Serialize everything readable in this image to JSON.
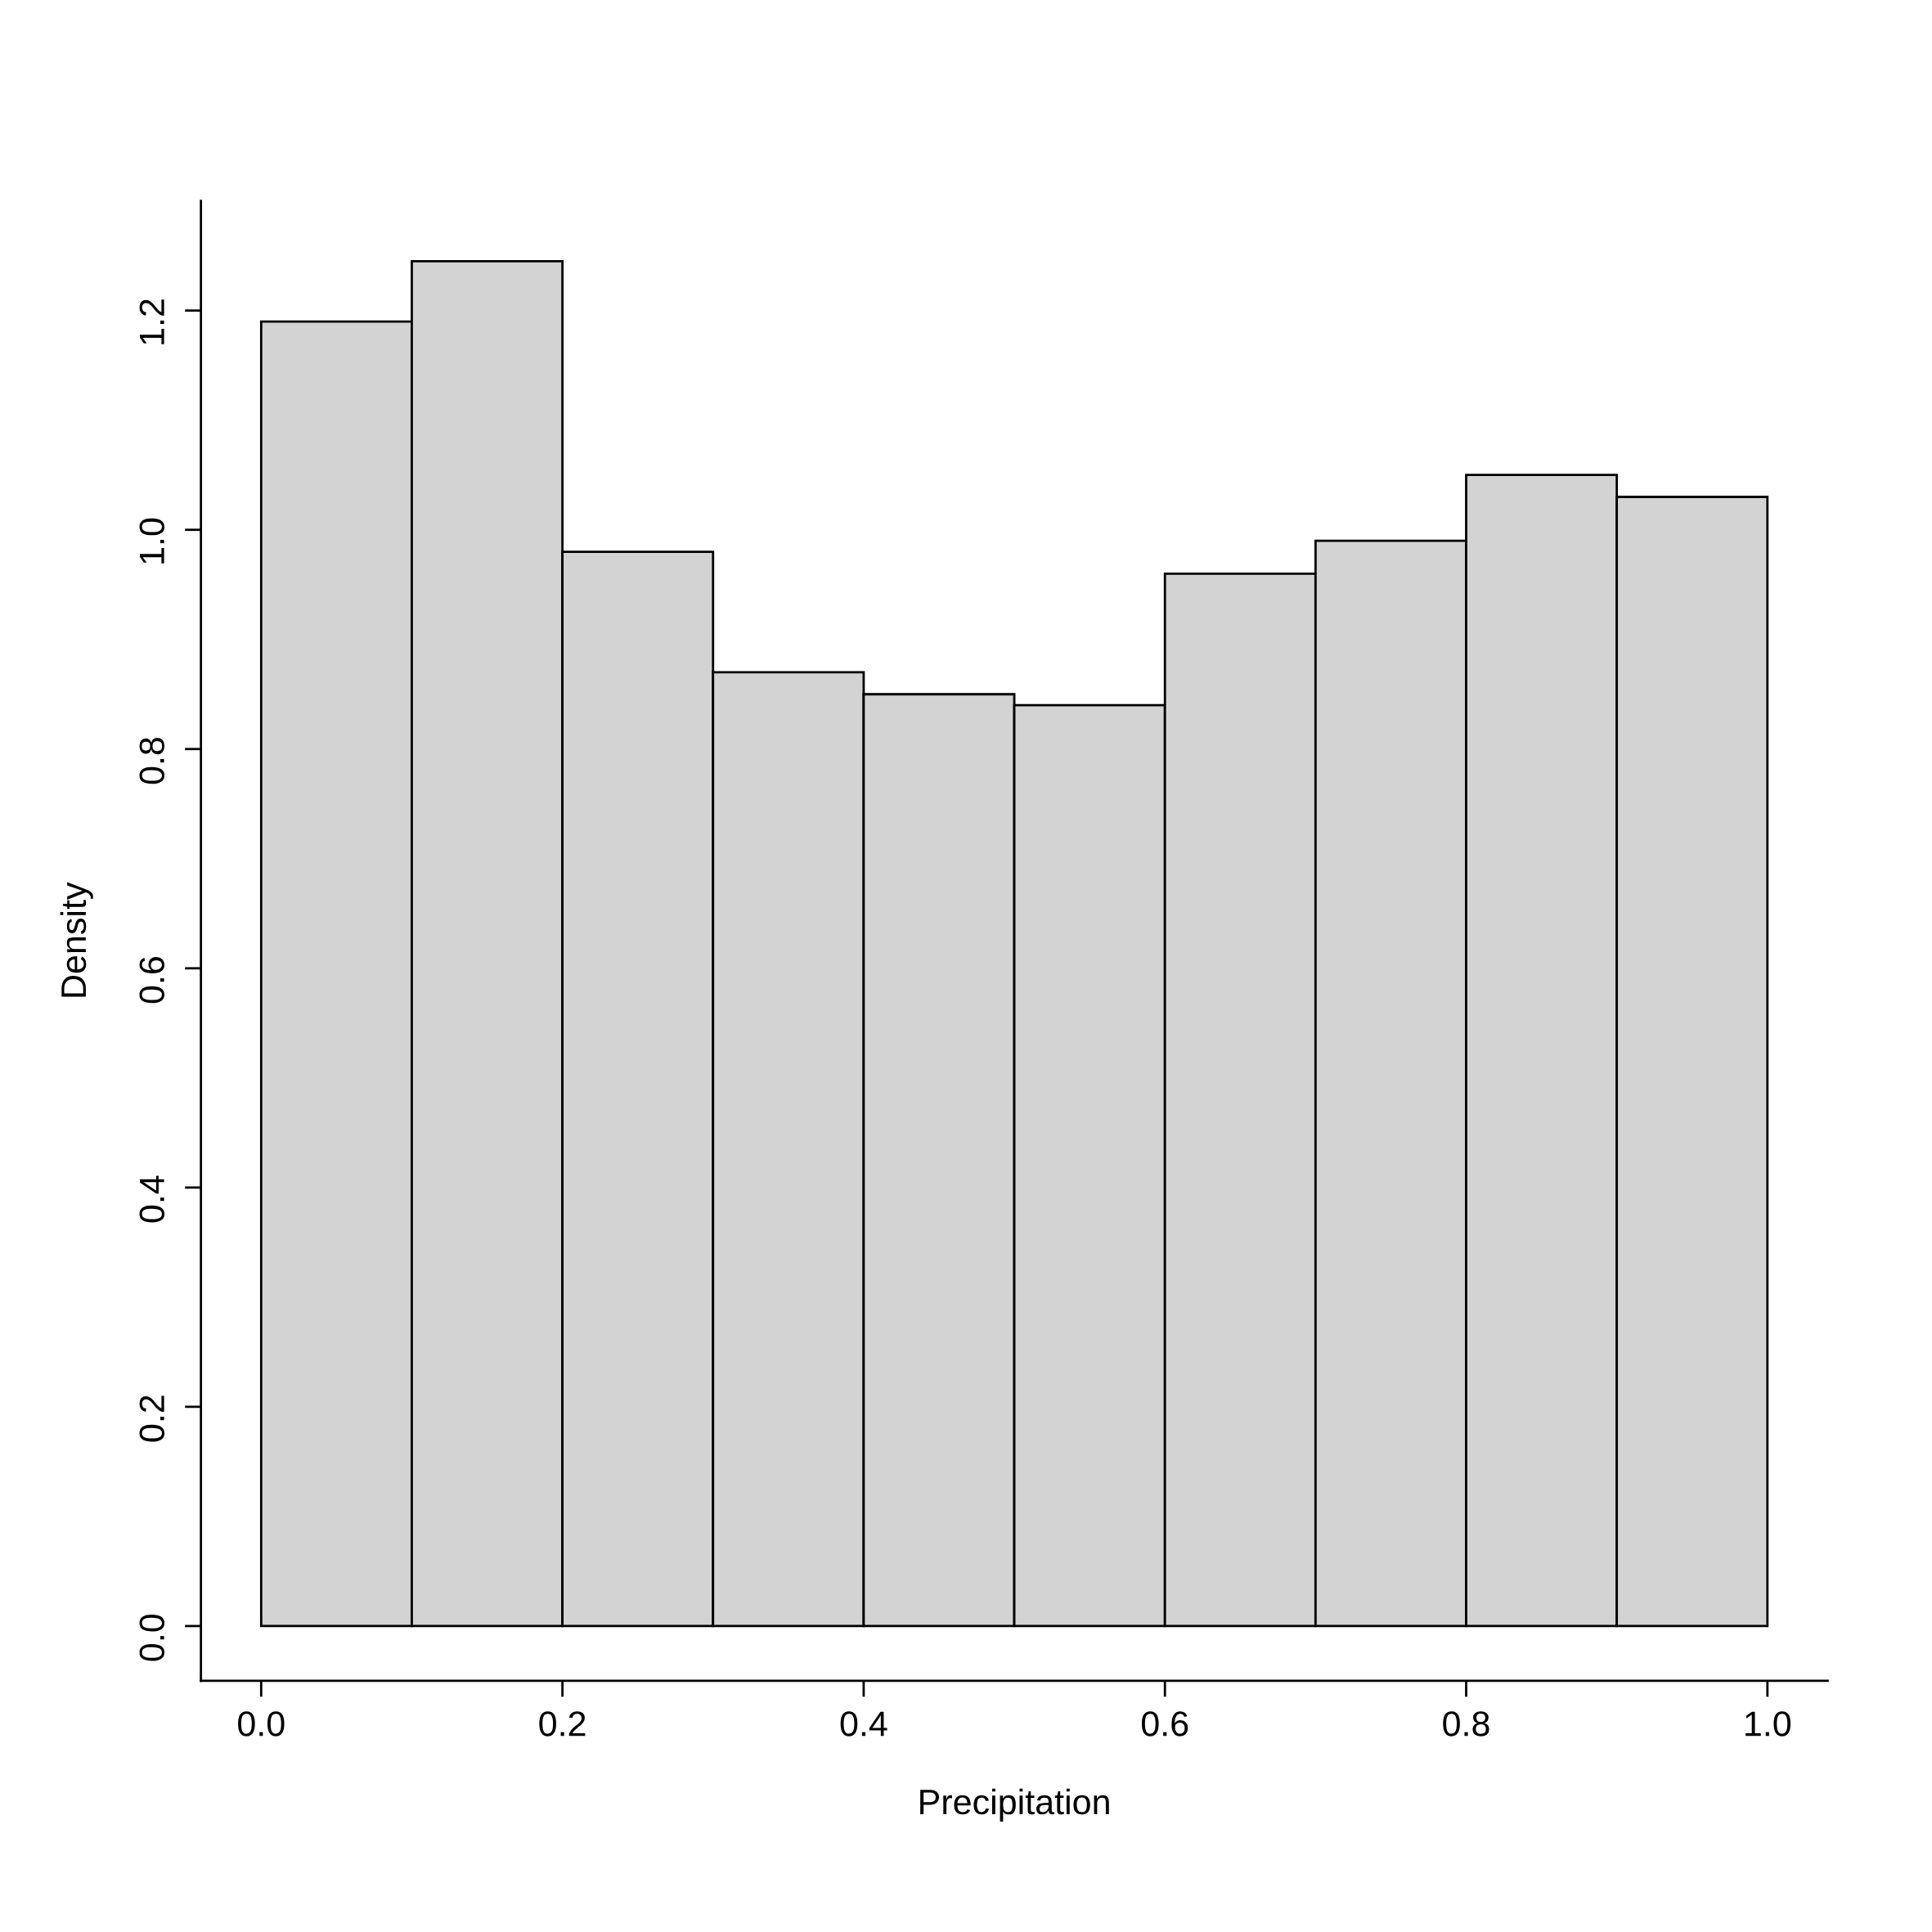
{
  "chart_data": {
    "type": "histogram",
    "xlabel": "Precipitation",
    "ylabel": "Density",
    "bins": [
      0.0,
      0.1,
      0.2,
      0.3,
      0.4,
      0.5,
      0.6,
      0.7,
      0.8,
      0.9,
      1.0
    ],
    "values": [
      1.19,
      1.245,
      0.98,
      0.87,
      0.85,
      0.84,
      0.96,
      0.99,
      1.05,
      1.03
    ],
    "color": "#d3d3d3",
    "xlim": [
      -0.04,
      1.04
    ],
    "ylim": [
      -0.05,
      1.3
    ],
    "xticks": [
      {
        "value": 0,
        "label": "0.0"
      },
      0.2,
      0.4,
      0.6,
      0.8,
      {
        "value": 1,
        "label": "1.0"
      }
    ],
    "yticks": [
      {
        "value": 0,
        "label": "0.0"
      },
      0.2,
      0.4,
      0.6,
      0.8,
      {
        "value": 1,
        "label": "1.0"
      },
      1.2
    ],
    "grid": false
  }
}
